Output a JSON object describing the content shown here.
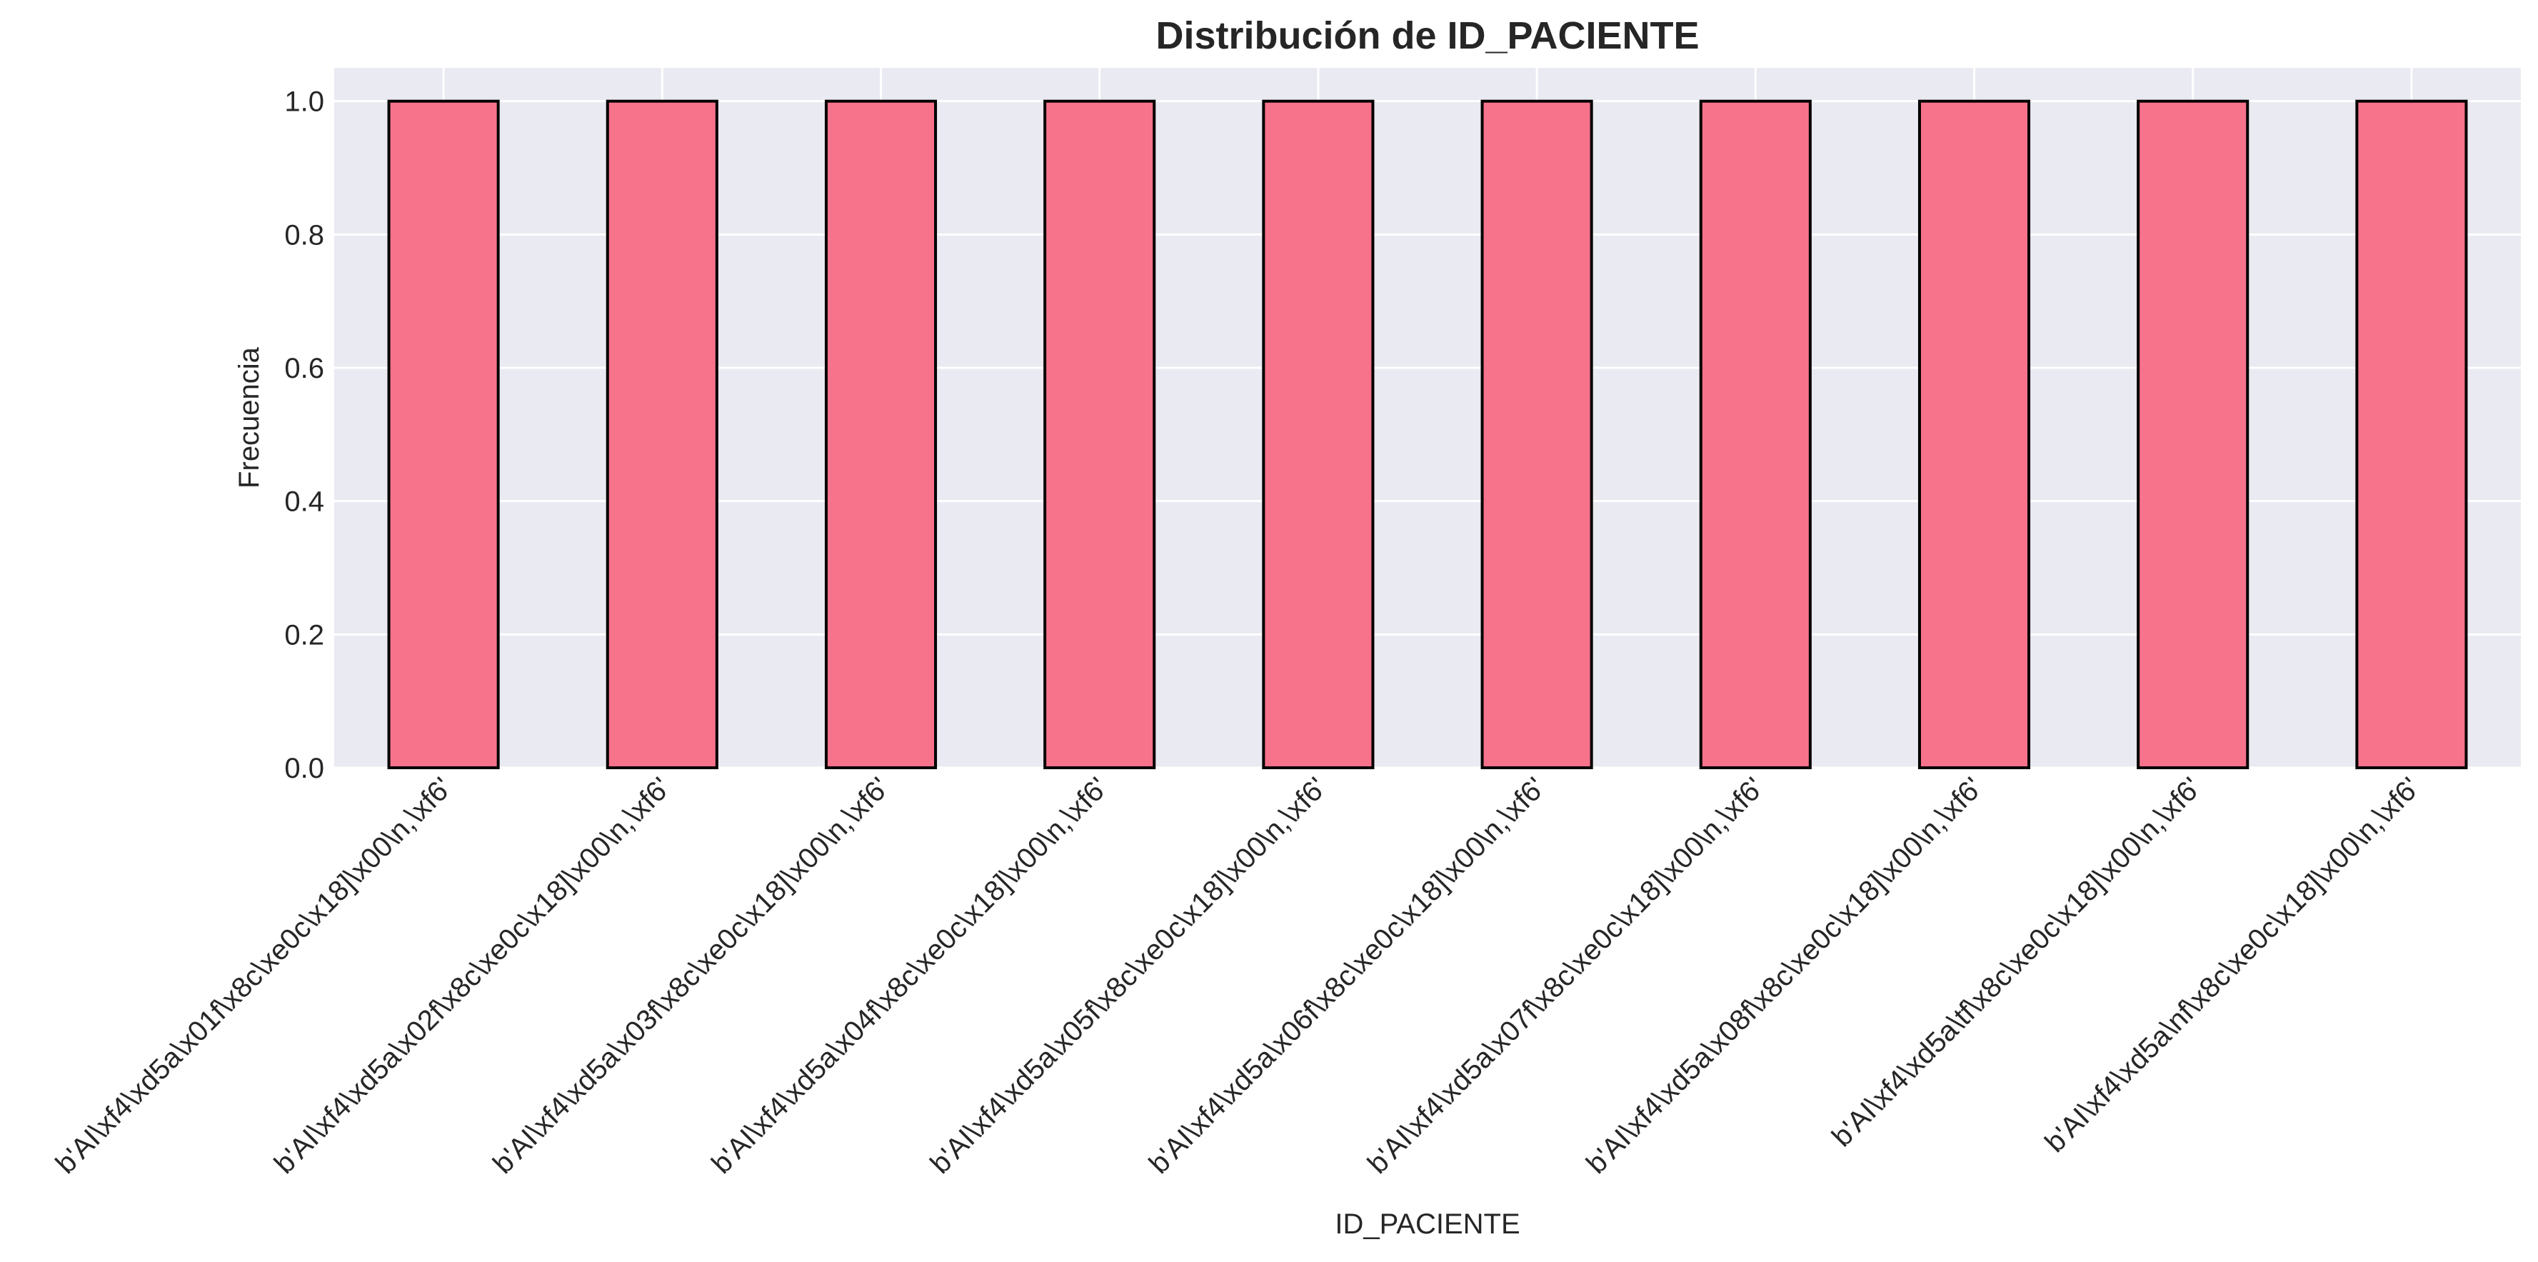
{
  "chart_data": {
    "type": "bar",
    "title": "Distribución de ID_PACIENTE",
    "xlabel": "ID_PACIENTE",
    "ylabel": "Frecuencia",
    "categories": [
      "b'AI\\xf4\\xd5a\\x01f\\x8c\\xe0c\\x18]\\x00\\n,\\xf6'",
      "b'AI\\xf4\\xd5a\\x02f\\x8c\\xe0c\\x18]\\x00\\n,\\xf6'",
      "b'AI\\xf4\\xd5a\\x03f\\x8c\\xe0c\\x18]\\x00\\n,\\xf6'",
      "b'AI\\xf4\\xd5a\\x04f\\x8c\\xe0c\\x18]\\x00\\n,\\xf6'",
      "b'AI\\xf4\\xd5a\\x05f\\x8c\\xe0c\\x18]\\x00\\n,\\xf6'",
      "b'AI\\xf4\\xd5a\\x06f\\x8c\\xe0c\\x18]\\x00\\n,\\xf6'",
      "b'AI\\xf4\\xd5a\\x07f\\x8c\\xe0c\\x18]\\x00\\n,\\xf6'",
      "b'AI\\xf4\\xd5a\\x08f\\x8c\\xe0c\\x18]\\x00\\n,\\xf6'",
      "b'AI\\xf4\\xd5a\\tf\\x8c\\xe0c\\x18]\\x00\\n,\\xf6'",
      "b'AI\\xf4\\xd5a\\nf\\x8c\\xe0c\\x18]\\x00\\n,\\xf6'"
    ],
    "values": [
      1,
      1,
      1,
      1,
      1,
      1,
      1,
      1,
      1,
      1
    ],
    "ylim": [
      0,
      1.05
    ],
    "yticks": [
      "0.0",
      "0.2",
      "0.4",
      "0.6",
      "0.8",
      "1.0"
    ],
    "grid": true,
    "legend": "none",
    "colors": {
      "bar_fill": "#f7728b",
      "bar_edge": "#000000",
      "plot_background": "#eaeaf2",
      "grid": "#ffffff",
      "text": "#262626"
    }
  }
}
